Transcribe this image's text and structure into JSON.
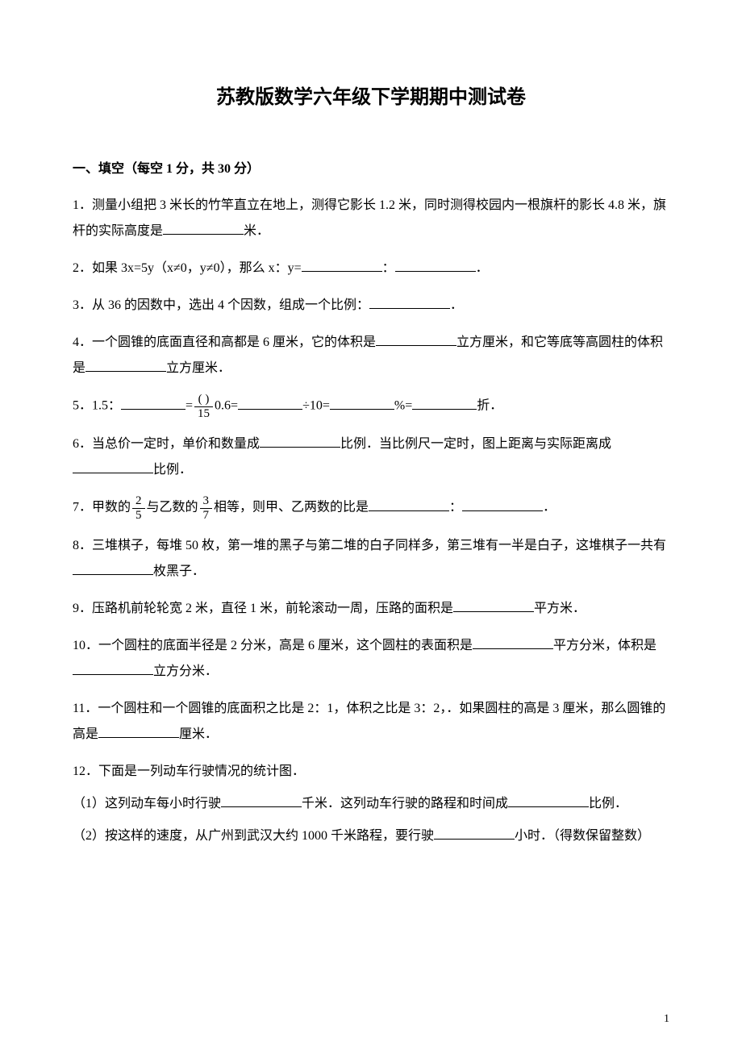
{
  "title": "苏教版数学六年级下学期期中测试卷",
  "section1": {
    "header": "一、填空（每空 1 分，共 30 分）",
    "q1": {
      "text_a": "1．测量小组把 3 米长的竹竿直立在地上，测得它影长 1.2 米，同时测得校园内一根旗杆的影长 4.8 米，旗杆的实际高度是",
      "text_b": "米．"
    },
    "q2": {
      "text_a": "2．如果 3x=5y（x≠0，y≠0），那么 x：y=",
      "text_b": "：",
      "text_c": "．"
    },
    "q3": {
      "text_a": "3．从 36 的因数中，选出 4 个因数，组成一个比例：",
      "text_b": "．"
    },
    "q4": {
      "text_a": "4．一个圆锥的底面直径和高都是 6 厘米，它的体积是",
      "text_b": "立方厘米，和它等底等高圆柱的体积是",
      "text_c": "立方厘米．"
    },
    "q5": {
      "text_a": "5．1.5：",
      "frac_num": "( )",
      "frac_den": "15",
      "text_b": "=",
      "text_c": "0.6=",
      "text_d": "÷10=",
      "text_e": "%=",
      "text_f": "折．"
    },
    "q6": {
      "text_a": "6．当总价一定时，单价和数量成",
      "text_b": "比例．当比例尺一定时，图上距离与实际距离成",
      "text_c": "比例．"
    },
    "q7": {
      "text_a": "7．甲数的",
      "frac1_num": "2",
      "frac1_den": "5",
      "text_b": "与乙数的",
      "frac2_num": "3",
      "frac2_den": "7",
      "text_c": "相等，则甲、乙两数的比是",
      "text_d": "：",
      "text_e": "．"
    },
    "q8": {
      "text_a": "8．三堆棋子，每堆 50 枚，第一堆的黑子与第二堆的白子同样多，第三堆有一半是白子，这堆棋子一共有",
      "text_b": "枚黑子．"
    },
    "q9": {
      "text_a": "9．压路机前轮轮宽 2 米，直径 1 米，前轮滚动一周，压路的面积是",
      "text_b": "平方米．"
    },
    "q10": {
      "text_a": "10．一个圆柱的底面半径是 2 分米，高是 6 厘米，这个圆柱的表面积是",
      "text_b": "平方分米，体积是",
      "text_c": "立方分米．"
    },
    "q11": {
      "text_a": "11．一个圆柱和一个圆锥的底面积之比是 2：1，体积之比是 3：2，．如果圆柱的高是 3 厘米，那么圆锥的高是",
      "text_b": "厘米．"
    },
    "q12": {
      "intro": "12．下面是一列动车行驶情况的统计图．",
      "sub1_a": "（1）这列动车每小时行驶",
      "sub1_b": "千米．这列动车行驶的路程和时间成",
      "sub1_c": "比例．",
      "sub2_a": "（2）按这样的速度，从广州到武汉大约 1000 千米路程，要行驶",
      "sub2_b": "小时．（得数保留整数）"
    }
  },
  "pageNumber": "1"
}
